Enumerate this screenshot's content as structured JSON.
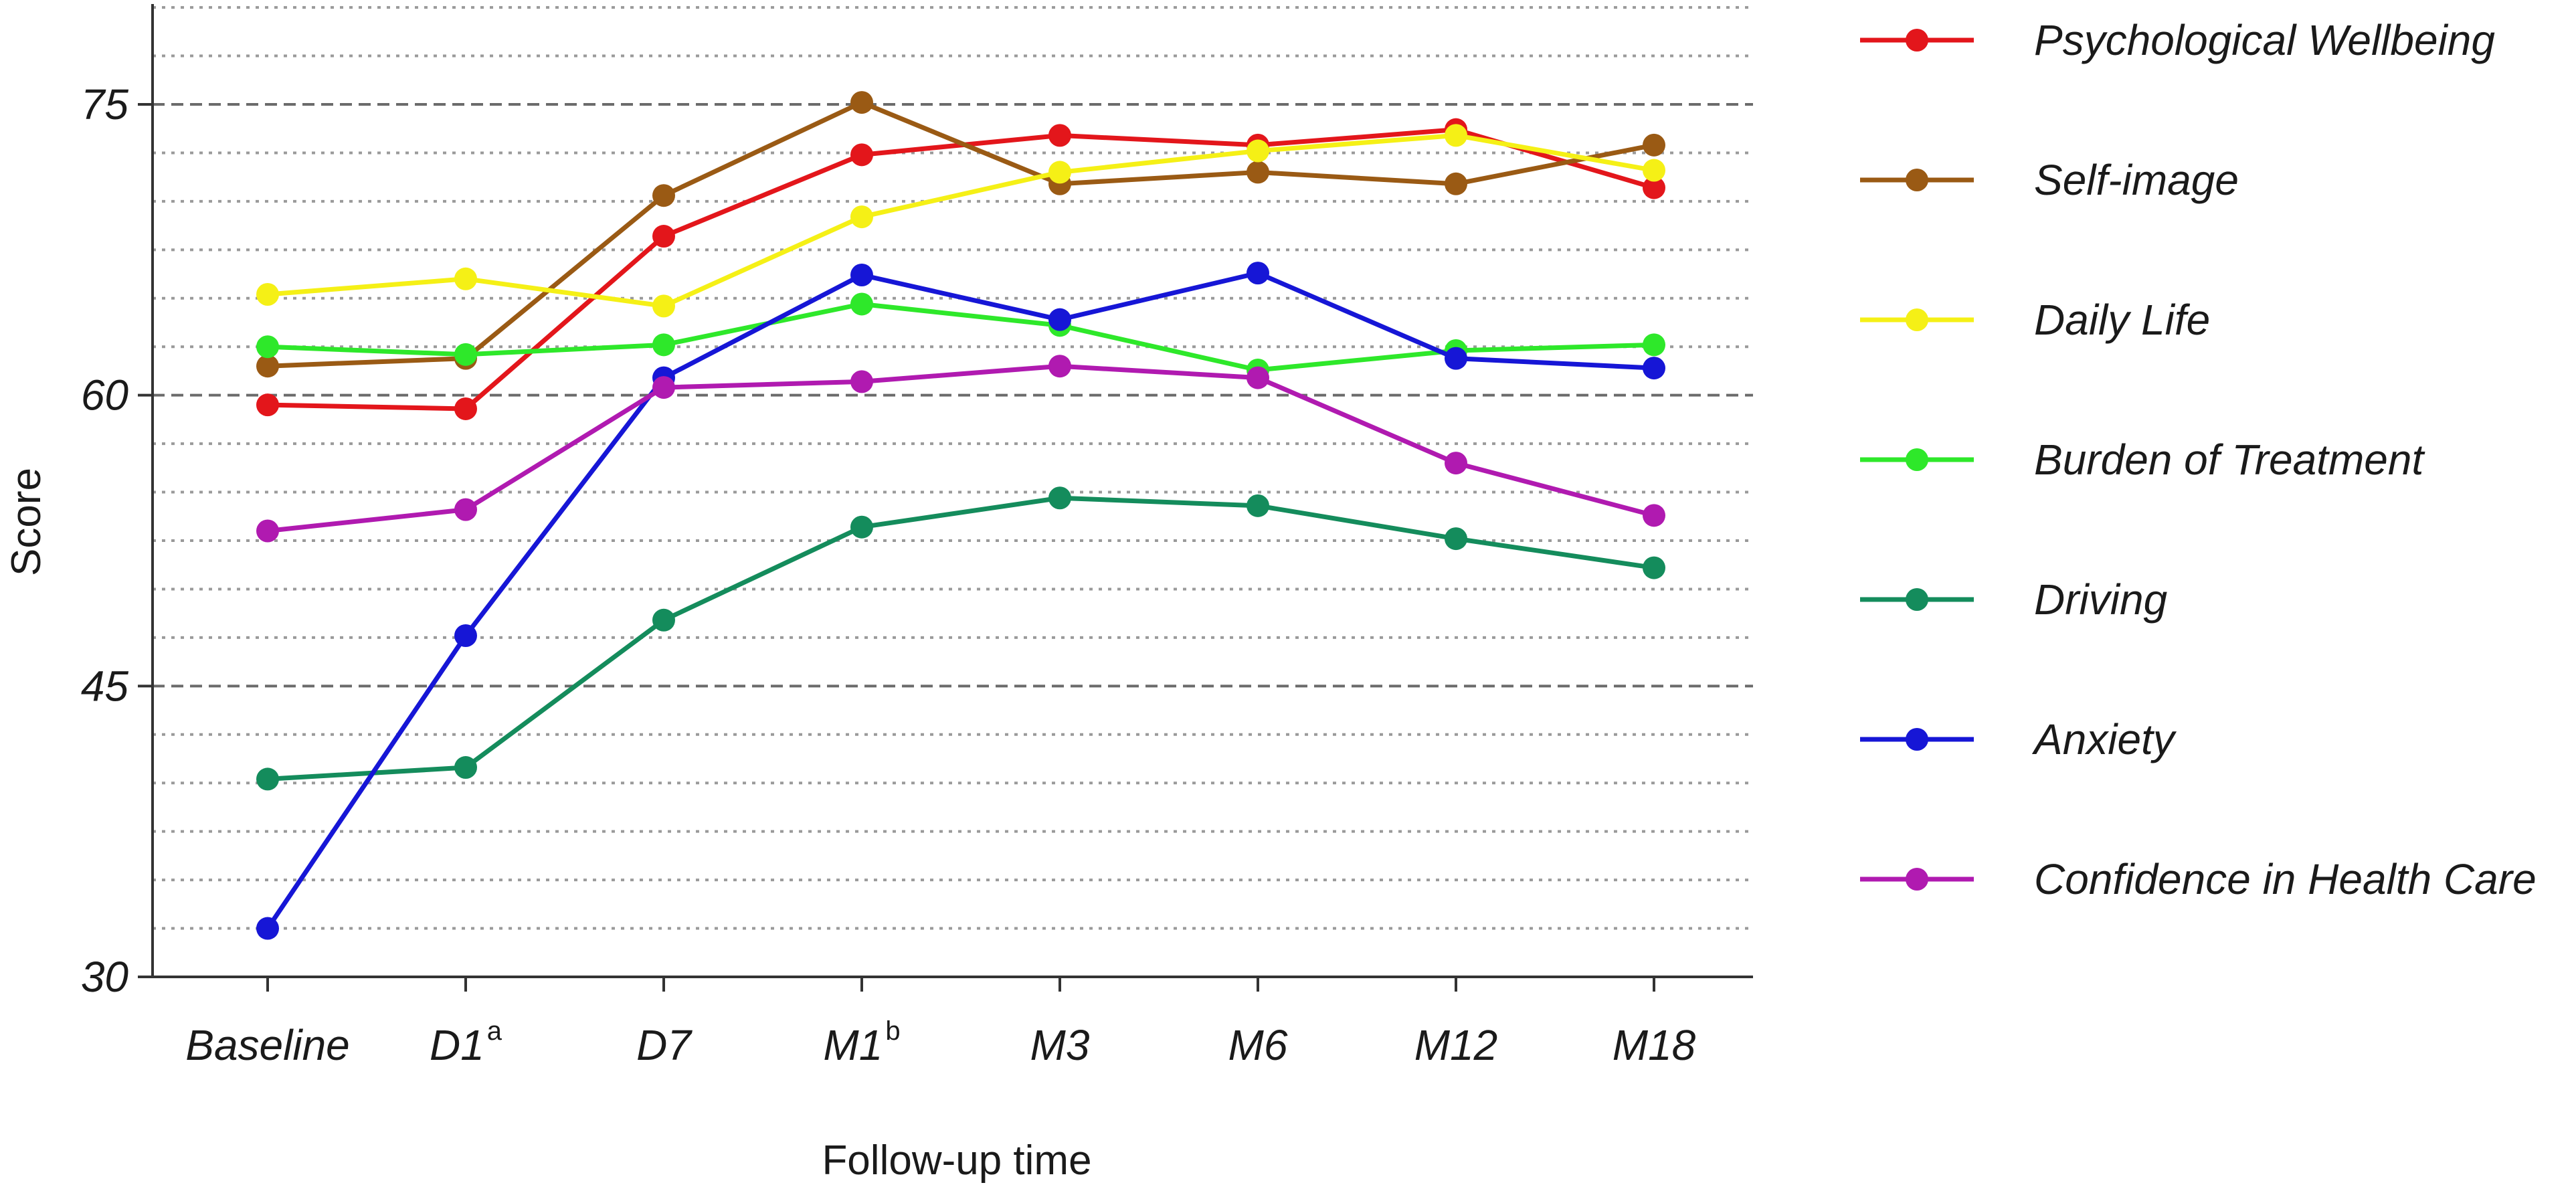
{
  "chart_data": {
    "type": "line",
    "xlabel": "Follow-up time",
    "ylabel": "Score",
    "ylim": [
      30,
      80
    ],
    "yticks": [
      30,
      45,
      60,
      75
    ],
    "grid": "horizontal dotted minor gridlines, dashed major gridlines at 45, 60, 75",
    "legend_placement": "right",
    "categories": [
      {
        "label": "Baseline",
        "sup": ""
      },
      {
        "label": "D1",
        "sup": "a"
      },
      {
        "label": "D7",
        "sup": ""
      },
      {
        "label": "M1",
        "sup": "b"
      },
      {
        "label": "M3",
        "sup": ""
      },
      {
        "label": "M6",
        "sup": ""
      },
      {
        "label": "M12",
        "sup": ""
      },
      {
        "label": "M18",
        "sup": ""
      }
    ],
    "series": [
      {
        "name": "Psychological Wellbeing",
        "color": "#e3161b",
        "values": [
          59.5,
          59.3,
          68.2,
          72.4,
          73.4,
          72.9,
          73.7,
          70.7
        ]
      },
      {
        "name": "Self-image",
        "color": "#9a5a14",
        "values": [
          61.5,
          61.9,
          70.3,
          75.1,
          70.9,
          71.5,
          70.9,
          72.9
        ]
      },
      {
        "name": "Daily Life",
        "color": "#f5f016",
        "values": [
          65.2,
          66.0,
          64.6,
          69.2,
          71.5,
          72.6,
          73.4,
          71.6
        ]
      },
      {
        "name": "Burden of Treatment",
        "color": "#2ee82a",
        "values": [
          62.5,
          62.1,
          62.6,
          64.7,
          63.6,
          61.3,
          62.3,
          62.6
        ]
      },
      {
        "name": "Driving",
        "color": "#148c5c",
        "values": [
          40.2,
          40.8,
          48.4,
          53.2,
          54.7,
          54.3,
          52.6,
          51.1
        ]
      },
      {
        "name": "Anxiety",
        "color": "#1616d6",
        "values": [
          32.5,
          47.6,
          60.9,
          66.2,
          63.9,
          66.3,
          61.9,
          61.4
        ]
      },
      {
        "name": "Confidence in Health Care",
        "color": "#b01ab0",
        "values": [
          53.0,
          54.1,
          60.4,
          60.7,
          61.5,
          60.9,
          56.5,
          53.8
        ]
      }
    ]
  }
}
